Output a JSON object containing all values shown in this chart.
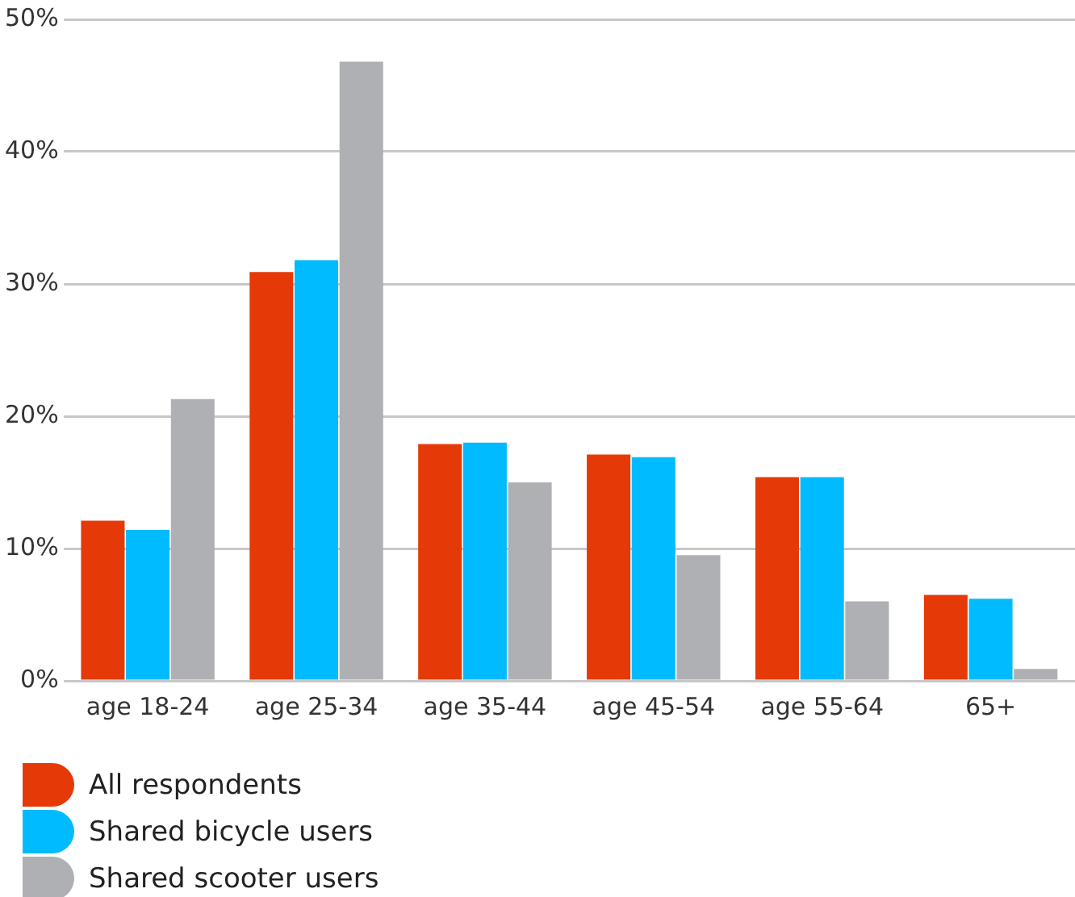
{
  "chart_data": {
    "type": "bar",
    "categories": [
      "age 18-24",
      "age 25-34",
      "age 35-44",
      "age 45-54",
      "age 55-64",
      "65+"
    ],
    "series": [
      {
        "name": "All respondents",
        "color": "#e53a07",
        "values": [
          12.1,
          30.9,
          17.9,
          17.1,
          15.4,
          6.5
        ]
      },
      {
        "name": "Shared bicycle users",
        "color": "#00bbff",
        "values": [
          11.4,
          31.8,
          18.0,
          16.9,
          15.4,
          6.2
        ]
      },
      {
        "name": "Shared scooter users",
        "color": "#aeb0b3",
        "values": [
          21.3,
          46.8,
          15.0,
          9.5,
          6.0,
          0.9
        ]
      }
    ],
    "ylim": [
      0,
      50
    ],
    "yticks": [
      {
        "value": 0,
        "label": "0%"
      },
      {
        "value": 10,
        "label": "10%"
      },
      {
        "value": 20,
        "label": "20%"
      },
      {
        "value": 30,
        "label": "30%"
      },
      {
        "value": 40,
        "label": "40%"
      },
      {
        "value": 50,
        "label": "50%"
      }
    ],
    "grid": "y",
    "legend": "bottom left"
  }
}
